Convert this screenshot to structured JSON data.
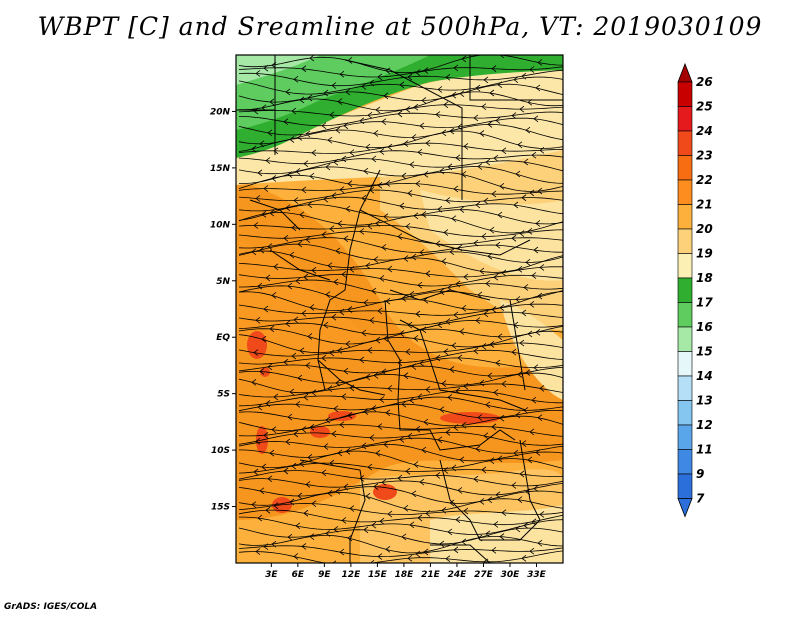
{
  "title": "WBPT [C] and Sreamline at 500hPa, VT: 2019030109",
  "credit": "GrADS: IGES/COLA",
  "map": {
    "region": "Central and Eastern Africa",
    "lon_range": [
      -1,
      36
    ],
    "lat_range": [
      -20,
      25
    ],
    "lat_ticks": [
      {
        "value": 20,
        "label": "20N"
      },
      {
        "value": 15,
        "label": "15N"
      },
      {
        "value": 10,
        "label": "10N"
      },
      {
        "value": 5,
        "label": "5N"
      },
      {
        "value": 0,
        "label": "EQ"
      },
      {
        "value": -5,
        "label": "5S"
      },
      {
        "value": -10,
        "label": "10S"
      },
      {
        "value": -15,
        "label": "15S"
      }
    ],
    "lon_ticks": [
      {
        "value": 3,
        "label": "3E"
      },
      {
        "value": 6,
        "label": "6E"
      },
      {
        "value": 9,
        "label": "9E"
      },
      {
        "value": 12,
        "label": "12E"
      },
      {
        "value": 15,
        "label": "15E"
      },
      {
        "value": 18,
        "label": "18E"
      },
      {
        "value": 21,
        "label": "21E"
      },
      {
        "value": 24,
        "label": "24E"
      },
      {
        "value": 27,
        "label": "27E"
      },
      {
        "value": 30,
        "label": "30E"
      },
      {
        "value": 33,
        "label": "33E"
      }
    ],
    "streamline_flow": "predominantly westward (east-to-west arrows)"
  },
  "colorbar": {
    "levels": [
      "26",
      "25",
      "24",
      "23",
      "22",
      "21",
      "20",
      "19",
      "18",
      "17",
      "16",
      "15",
      "14",
      "13",
      "12",
      "11",
      "9",
      "7"
    ],
    "colors": [
      "#a50000",
      "#c80000",
      "#e41a1c",
      "#f04a1a",
      "#f76d12",
      "#fc8d1e",
      "#fdb13c",
      "#fdd17a",
      "#fcf0b4",
      "#2fae2f",
      "#5ecc5e",
      "#a6e8a6",
      "#e6f7f9",
      "#b4dff6",
      "#85c6f0",
      "#5aa6eb",
      "#3f88e3",
      "#2b6fdb"
    ]
  }
}
